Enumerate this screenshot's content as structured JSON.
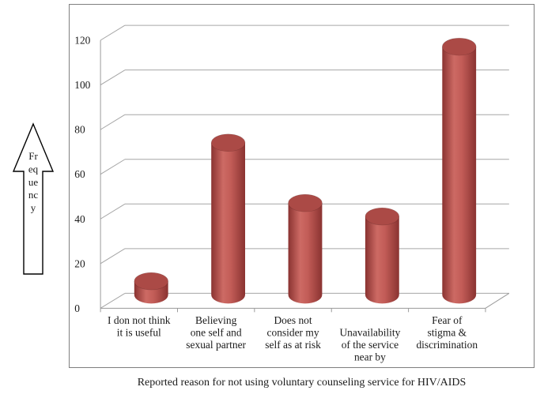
{
  "chart_data": {
    "type": "bar",
    "subtype": "3d-cylinder",
    "title": "",
    "xlabel": "Reported reason for not using voluntary counseling service for HIV/AIDS",
    "ylabel": "Frequency",
    "ylabel_arrow_lines": [
      "Fr",
      "eq",
      "ue",
      "nc",
      "y"
    ],
    "categories": [
      "I don not think it is useful",
      "Believing one self and sexual partner",
      "Does not consider my self as at risk",
      "Unavailability of the service near by",
      "Fear of stigma & discrimination"
    ],
    "categories_wrapped": [
      [
        "I don not think",
        "it is useful"
      ],
      [
        "Believing",
        "one self and",
        "sexual partner"
      ],
      [
        "Does not",
        "consider my",
        "self as at risk"
      ],
      [
        "Unavailability",
        "of the service",
        "near by"
      ],
      [
        "Fear of",
        "stigma &",
        "discrimination"
      ]
    ],
    "category_line_offsets": [
      0,
      0,
      0,
      1,
      0
    ],
    "values": [
      10,
      72,
      45,
      39,
      115
    ],
    "yticks": [
      0,
      20,
      40,
      60,
      80,
      100,
      120
    ],
    "ylim": [
      0,
      130
    ],
    "grid": true,
    "legend": "none",
    "colors": {
      "bar_fill": "#c0504d",
      "bar_edge_dark": "#8a3331",
      "bar_mid": "#c25c57",
      "bar_highlight": "#cd6a64",
      "bar_top": "#ab4a46",
      "gridline": "#a6a6a6",
      "axis": "#9a9a9a",
      "chart_border": "#7f7f7f",
      "text": "#1a1a1a",
      "background": "#ffffff"
    }
  }
}
